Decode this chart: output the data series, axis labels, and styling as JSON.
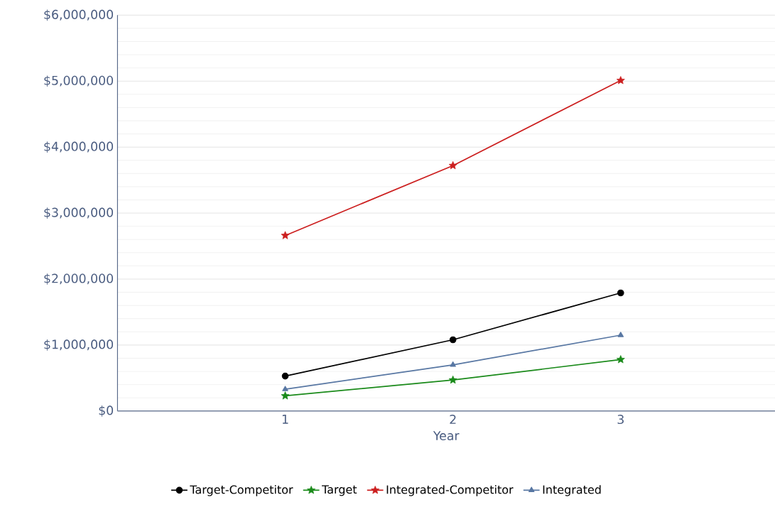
{
  "chart_data": {
    "type": "line",
    "xlabel": "Year",
    "x": [
      1,
      2,
      3
    ],
    "xlim": [
      0,
      3.92
    ],
    "xticks": [
      1,
      2,
      3
    ],
    "ylim": [
      0,
      6000000
    ],
    "yticks": [
      {
        "value": 0,
        "label": "$0"
      },
      {
        "value": 1000000,
        "label": "$1,000,000"
      },
      {
        "value": 2000000,
        "label": "$2,000,000"
      },
      {
        "value": 3000000,
        "label": "$3,000,000"
      },
      {
        "value": 4000000,
        "label": "$4,000,000"
      },
      {
        "value": 5000000,
        "label": "$5,000,000"
      },
      {
        "value": 6000000,
        "label": "$6,000,000"
      }
    ],
    "grid": "y",
    "legend": "bottom",
    "line_style": "solid",
    "series": [
      {
        "name": "Target-Competitor",
        "color": "#000000",
        "marker": "circle",
        "values": [
          530000,
          1080000,
          1790000
        ]
      },
      {
        "name": "Target",
        "color": "#1a8a1a",
        "marker": "star",
        "values": [
          230000,
          470000,
          780000
        ]
      },
      {
        "name": "Integrated-Competitor",
        "color": "#cc1f1f",
        "marker": "star",
        "values": [
          2660000,
          3720000,
          5010000
        ]
      },
      {
        "name": "Integrated",
        "color": "#5877a3",
        "marker": "triangle",
        "values": [
          330000,
          700000,
          1150000
        ]
      }
    ]
  }
}
